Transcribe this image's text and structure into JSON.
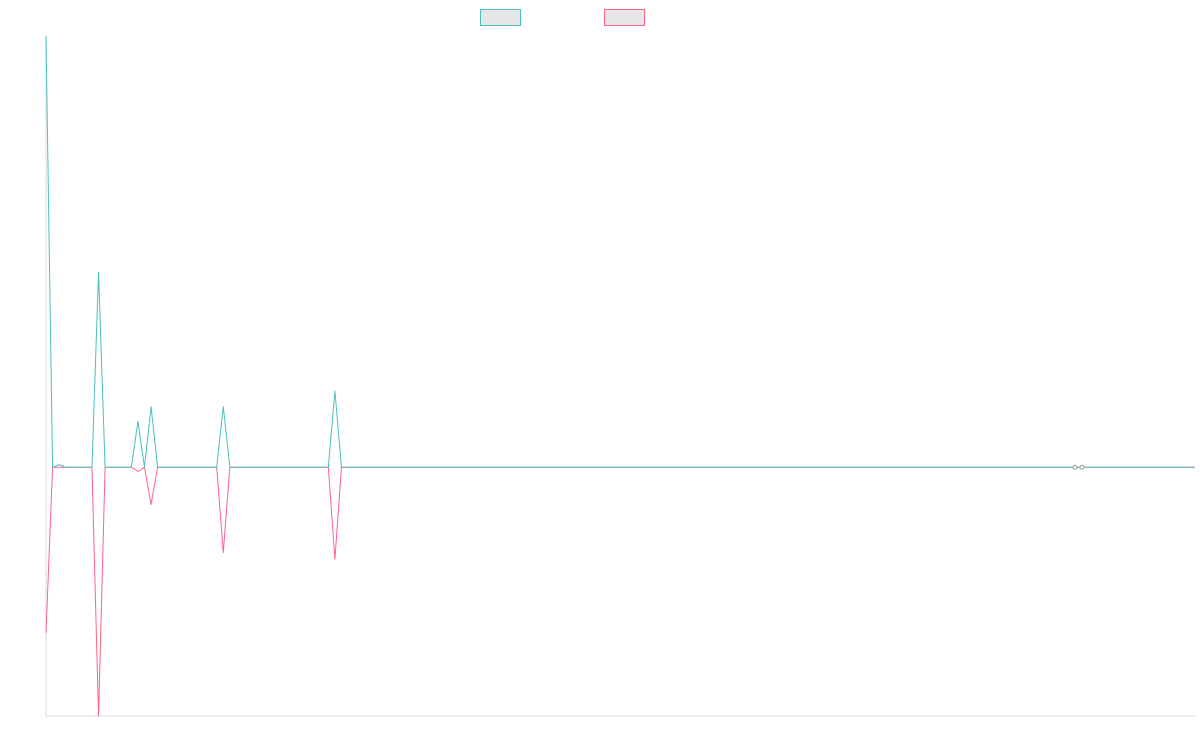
{
  "chart_data": {
    "type": "line",
    "title": "",
    "xlabel": "",
    "ylabel": "",
    "grid": false,
    "legend_position": "top-center",
    "x_count": 176,
    "xlim": [
      0,
      175
    ],
    "ylim": [
      -300,
      520
    ],
    "series": [
      {
        "name": "",
        "color": "#4bc0c0",
        "legend_fill": "#e6e6e6",
        "values": [
          520,
          0,
          3,
          0,
          0,
          0,
          0,
          0,
          235,
          0,
          0,
          0,
          0,
          0,
          55,
          0,
          73,
          0,
          0,
          0,
          0,
          0,
          0,
          0,
          0,
          0,
          0,
          73,
          0,
          0,
          0,
          0,
          0,
          0,
          0,
          0,
          0,
          0,
          0,
          0,
          0,
          0,
          0,
          0,
          92,
          0,
          0,
          0,
          0,
          0,
          0,
          0,
          0,
          0,
          0,
          0,
          0,
          0,
          0,
          0,
          0,
          0,
          0,
          0,
          0,
          0,
          0,
          0,
          0,
          0,
          0,
          0,
          0,
          0,
          0,
          0,
          0,
          0,
          0,
          0,
          0,
          0,
          0,
          0,
          0,
          0,
          0,
          0,
          0,
          0,
          0,
          0,
          0,
          0,
          0,
          0,
          0,
          0,
          0,
          0,
          0,
          0,
          0,
          0,
          0,
          0,
          0,
          0,
          0,
          0,
          0,
          0,
          0,
          0,
          0,
          0,
          0,
          0,
          0,
          0,
          0,
          0,
          0,
          0,
          0,
          0,
          0,
          0,
          0,
          0,
          0,
          0,
          0,
          0,
          0,
          0,
          0,
          0,
          0,
          0,
          0,
          0,
          0,
          0,
          0,
          0,
          0,
          0,
          0,
          0,
          0,
          0,
          0,
          0,
          0,
          0,
          0,
          0,
          0,
          0,
          0,
          0,
          0,
          0,
          0,
          0,
          0,
          0,
          0,
          0,
          0,
          0,
          0,
          0,
          0,
          0
        ]
      },
      {
        "name": "",
        "color": "#ff6384",
        "legend_fill": "#e6e6e6",
        "values": [
          -200,
          0,
          0,
          0,
          0,
          0,
          0,
          0,
          -300,
          0,
          0,
          0,
          0,
          0,
          -5,
          0,
          -45,
          0,
          0,
          0,
          0,
          0,
          0,
          0,
          0,
          0,
          0,
          -103,
          0,
          0,
          0,
          0,
          0,
          0,
          0,
          0,
          0,
          0,
          0,
          0,
          0,
          0,
          0,
          0,
          -111,
          0,
          0,
          0,
          0,
          0,
          0,
          0,
          0,
          0,
          0,
          0,
          0,
          0,
          0,
          0,
          0,
          0,
          0,
          0,
          0,
          0,
          0,
          0,
          0,
          0,
          0,
          0,
          0,
          0,
          0,
          0,
          0,
          0,
          0,
          0,
          0,
          0,
          0,
          0,
          0,
          0,
          0,
          0,
          0,
          0,
          0,
          0,
          0,
          0,
          0,
          0,
          0,
          0,
          0,
          0,
          0,
          0,
          0,
          0,
          0,
          0,
          0,
          0,
          0,
          0,
          0,
          0,
          0,
          0,
          0,
          0,
          0,
          0,
          0,
          0,
          0,
          0,
          0,
          0,
          0,
          0,
          0,
          0,
          0,
          0,
          0,
          0,
          0,
          0,
          0,
          0,
          0,
          0,
          0,
          0,
          0,
          0,
          0,
          0,
          0,
          0,
          0,
          0,
          0,
          0,
          0,
          0,
          0,
          0,
          0,
          0,
          0,
          0,
          0,
          0,
          0,
          0,
          0,
          0,
          0,
          0,
          0,
          0,
          0,
          0,
          0,
          0,
          0,
          0,
          0,
          0
        ]
      }
    ]
  }
}
